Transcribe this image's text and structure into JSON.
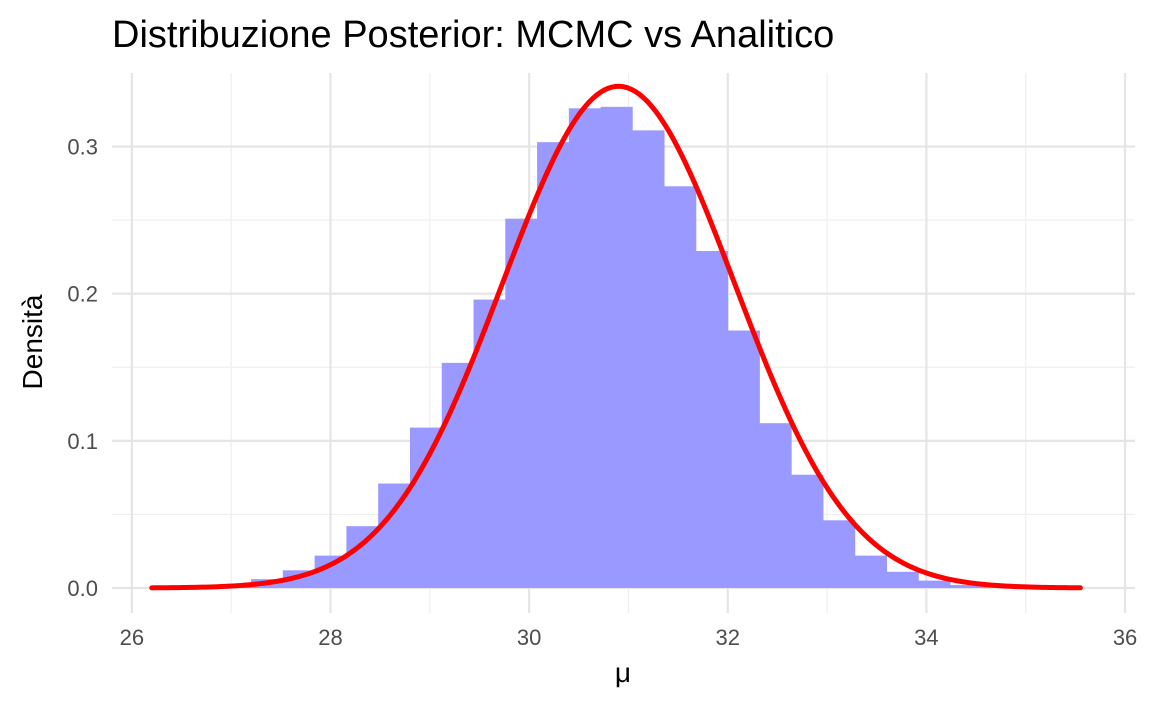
{
  "chart_data": {
    "type": "bar",
    "title": "Distribuzione Posterior: MCMC vs Analitico",
    "xlabel": "μ",
    "ylabel": "Densità",
    "xlim": [
      25.8,
      36.1
    ],
    "ylim": [
      -0.017,
      0.35
    ],
    "x_ticks": [
      "26",
      "28",
      "30",
      "32",
      "34",
      "36"
    ],
    "y_ticks": [
      "0.0",
      "0.1",
      "0.2",
      "0.3"
    ],
    "grid": true,
    "series": [
      {
        "type": "histogram",
        "color": "#9999ff",
        "bin_width": 0.32,
        "bin_centers": [
          27.04,
          27.36,
          27.68,
          28.0,
          28.32,
          28.64,
          28.96,
          29.28,
          29.6,
          29.92,
          30.24,
          30.56,
          30.88,
          31.2,
          31.52,
          31.84,
          32.16,
          32.48,
          32.8,
          33.12,
          33.44,
          33.76,
          34.08,
          34.4,
          34.72
        ],
        "density": [
          0.002,
          0.006,
          0.012,
          0.022,
          0.042,
          0.071,
          0.109,
          0.153,
          0.196,
          0.251,
          0.303,
          0.326,
          0.327,
          0.311,
          0.273,
          0.229,
          0.175,
          0.112,
          0.077,
          0.046,
          0.022,
          0.011,
          0.005,
          0.002,
          0.001
        ]
      },
      {
        "type": "line",
        "color": "#ff0000",
        "distribution": "normal",
        "mean": 30.9,
        "sd": 1.17,
        "x_range": [
          26.2,
          35.55
        ]
      }
    ]
  }
}
